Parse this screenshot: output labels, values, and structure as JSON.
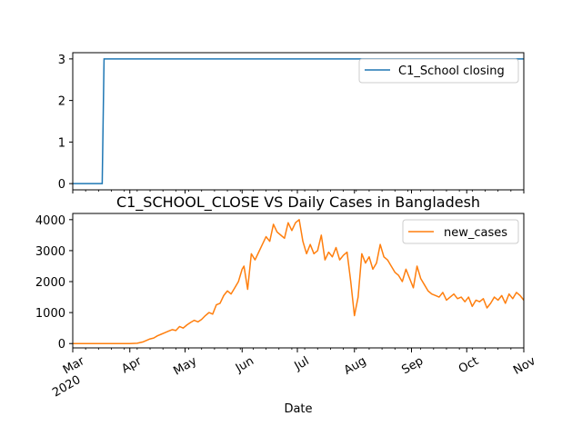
{
  "chart_data": [
    {
      "type": "line",
      "title": "",
      "xlabel": "",
      "ylabel": "",
      "ylim": [
        -0.15,
        3.15
      ],
      "yticks": [
        0,
        1,
        2,
        3
      ],
      "legend": {
        "position": "top-right",
        "entries": [
          "C1_School closing"
        ]
      },
      "grid": false,
      "series": [
        {
          "name": "C1_School closing",
          "color": "#1f77b4",
          "points": [
            [
              "2020-03-01",
              0
            ],
            [
              "2020-03-17",
              0
            ],
            [
              "2020-03-18",
              3
            ],
            [
              "2020-11-01",
              3
            ]
          ]
        }
      ]
    },
    {
      "type": "line",
      "title": "C1_SCHOOL_CLOSE VS Daily Cases in Bangladesh",
      "xlabel": "Date",
      "ylabel": "",
      "ylim": [
        -140,
        4200
      ],
      "yticks": [
        0,
        1000,
        2000,
        3000,
        4000
      ],
      "legend": {
        "position": "top-right",
        "entries": [
          "new_cases"
        ]
      },
      "grid": false,
      "x_range": [
        "2020-03-01",
        "2020-11-01"
      ],
      "x_ticks": [
        {
          "date": "2020-03-01",
          "label": "Mar",
          "sublabel": "2020"
        },
        {
          "date": "2020-04-01",
          "label": "Apr"
        },
        {
          "date": "2020-05-01",
          "label": "May"
        },
        {
          "date": "2020-06-01",
          "label": "Jun"
        },
        {
          "date": "2020-07-01",
          "label": "Jul"
        },
        {
          "date": "2020-08-01",
          "label": "Aug"
        },
        {
          "date": "2020-09-01",
          "label": "Sep"
        },
        {
          "date": "2020-10-01",
          "label": "Oct"
        },
        {
          "date": "2020-11-01",
          "label": "Nov"
        }
      ],
      "series": [
        {
          "name": "new_cases",
          "color": "#ff7f0e",
          "points": [
            [
              "2020-03-01",
              0
            ],
            [
              "2020-04-01",
              0
            ],
            [
              "2020-04-05",
              10
            ],
            [
              "2020-04-08",
              50
            ],
            [
              "2020-04-10",
              100
            ],
            [
              "2020-04-12",
              150
            ],
            [
              "2020-04-14",
              180
            ],
            [
              "2020-04-16",
              250
            ],
            [
              "2020-04-18",
              300
            ],
            [
              "2020-04-20",
              350
            ],
            [
              "2020-04-22",
              400
            ],
            [
              "2020-04-24",
              450
            ],
            [
              "2020-04-26",
              420
            ],
            [
              "2020-04-28",
              550
            ],
            [
              "2020-04-30",
              500
            ],
            [
              "2020-05-02",
              600
            ],
            [
              "2020-05-04",
              680
            ],
            [
              "2020-05-06",
              750
            ],
            [
              "2020-05-08",
              700
            ],
            [
              "2020-05-10",
              780
            ],
            [
              "2020-05-12",
              900
            ],
            [
              "2020-05-14",
              1000
            ],
            [
              "2020-05-16",
              950
            ],
            [
              "2020-05-18",
              1250
            ],
            [
              "2020-05-20",
              1300
            ],
            [
              "2020-05-22",
              1550
            ],
            [
              "2020-05-24",
              1700
            ],
            [
              "2020-05-26",
              1600
            ],
            [
              "2020-05-28",
              1800
            ],
            [
              "2020-05-30",
              2000
            ],
            [
              "2020-06-01",
              2400
            ],
            [
              "2020-06-02",
              2500
            ],
            [
              "2020-06-04",
              1750
            ],
            [
              "2020-06-06",
              2900
            ],
            [
              "2020-06-08",
              2700
            ],
            [
              "2020-06-10",
              2950
            ],
            [
              "2020-06-12",
              3200
            ],
            [
              "2020-06-14",
              3450
            ],
            [
              "2020-06-16",
              3300
            ],
            [
              "2020-06-18",
              3850
            ],
            [
              "2020-06-20",
              3600
            ],
            [
              "2020-06-22",
              3500
            ],
            [
              "2020-06-24",
              3400
            ],
            [
              "2020-06-26",
              3900
            ],
            [
              "2020-06-28",
              3650
            ],
            [
              "2020-06-30",
              3900
            ],
            [
              "2020-07-02",
              4000
            ],
            [
              "2020-07-04",
              3300
            ],
            [
              "2020-07-06",
              2900
            ],
            [
              "2020-07-08",
              3200
            ],
            [
              "2020-07-10",
              2900
            ],
            [
              "2020-07-12",
              3000
            ],
            [
              "2020-07-14",
              3500
            ],
            [
              "2020-07-16",
              2700
            ],
            [
              "2020-07-18",
              2950
            ],
            [
              "2020-07-20",
              2800
            ],
            [
              "2020-07-22",
              3100
            ],
            [
              "2020-07-24",
              2700
            ],
            [
              "2020-07-26",
              2850
            ],
            [
              "2020-07-28",
              2950
            ],
            [
              "2020-07-30",
              2000
            ],
            [
              "2020-08-01",
              900
            ],
            [
              "2020-08-03",
              1500
            ],
            [
              "2020-08-05",
              2900
            ],
            [
              "2020-08-07",
              2600
            ],
            [
              "2020-08-09",
              2800
            ],
            [
              "2020-08-11",
              2400
            ],
            [
              "2020-08-13",
              2600
            ],
            [
              "2020-08-15",
              3200
            ],
            [
              "2020-08-17",
              2800
            ],
            [
              "2020-08-19",
              2700
            ],
            [
              "2020-08-21",
              2500
            ],
            [
              "2020-08-23",
              2300
            ],
            [
              "2020-08-25",
              2200
            ],
            [
              "2020-08-27",
              2000
            ],
            [
              "2020-08-29",
              2400
            ],
            [
              "2020-08-31",
              2100
            ],
            [
              "2020-09-02",
              1800
            ],
            [
              "2020-09-04",
              2500
            ],
            [
              "2020-09-06",
              2100
            ],
            [
              "2020-09-08",
              1900
            ],
            [
              "2020-09-10",
              1700
            ],
            [
              "2020-09-12",
              1600
            ],
            [
              "2020-09-14",
              1550
            ],
            [
              "2020-09-16",
              1500
            ],
            [
              "2020-09-18",
              1650
            ],
            [
              "2020-09-20",
              1400
            ],
            [
              "2020-09-22",
              1500
            ],
            [
              "2020-09-24",
              1600
            ],
            [
              "2020-09-26",
              1450
            ],
            [
              "2020-09-28",
              1500
            ],
            [
              "2020-09-30",
              1350
            ],
            [
              "2020-10-02",
              1500
            ],
            [
              "2020-10-04",
              1200
            ],
            [
              "2020-10-06",
              1400
            ],
            [
              "2020-10-08",
              1350
            ],
            [
              "2020-10-10",
              1450
            ],
            [
              "2020-10-12",
              1150
            ],
            [
              "2020-10-14",
              1300
            ],
            [
              "2020-10-16",
              1500
            ],
            [
              "2020-10-18",
              1400
            ],
            [
              "2020-10-20",
              1550
            ],
            [
              "2020-10-22",
              1300
            ],
            [
              "2020-10-24",
              1600
            ],
            [
              "2020-10-26",
              1450
            ],
            [
              "2020-10-28",
              1650
            ],
            [
              "2020-10-30",
              1550
            ],
            [
              "2020-11-01",
              1400
            ]
          ]
        }
      ]
    }
  ]
}
